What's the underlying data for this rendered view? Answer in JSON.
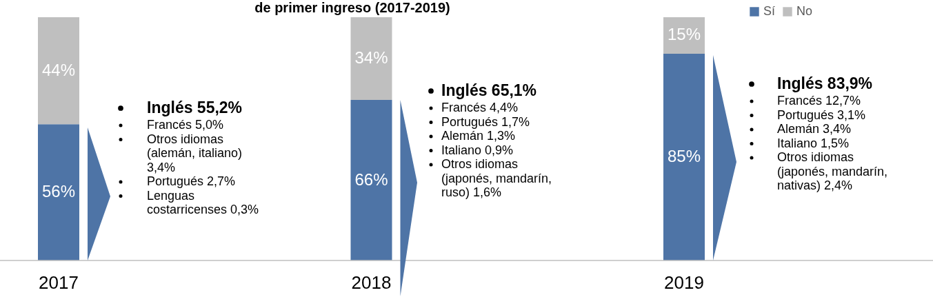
{
  "chart_data": {
    "type": "bar",
    "stacked": true,
    "title": "de primer ingreso (2017-2019)",
    "categories": [
      "2017",
      "2018",
      "2019"
    ],
    "series": [
      {
        "name": "Sí",
        "color": "#4e74a6",
        "values": [
          56,
          66,
          85
        ],
        "value_labels": [
          "56%",
          "66%",
          "85%"
        ]
      },
      {
        "name": "No",
        "color": "#bfbfbf",
        "values": [
          44,
          34,
          15
        ],
        "value_labels": [
          "44%",
          "34%",
          "15%"
        ]
      }
    ],
    "ylim": [
      0,
      100
    ],
    "legend": "top right",
    "tick_labels": "x",
    "annotations": [
      "Inglés 55,2%\nFrancés 5,0%\nOtros idiomas\n(alemán, italiano)\n3,4%\nPortugués 2,7%\nLenguas\ncostarricenses 0,3%",
      "Inglés 65,1%\nFrancés 4,4%\nPortugués 1,7%\nAlemán 1,3%\nItaliano 0,9%\nOtros idiomas\n(japonés, mandarín,\nruso) 1,6%",
      "Inglés 83,9%\nFrancés 12,7%\nPortugués 3,1%\nAlemán 3,4%\nItaliano 1,5%\nOtros idiomas\n(japonés, mandarín,\nnativas) 2,4%"
    ]
  }
}
